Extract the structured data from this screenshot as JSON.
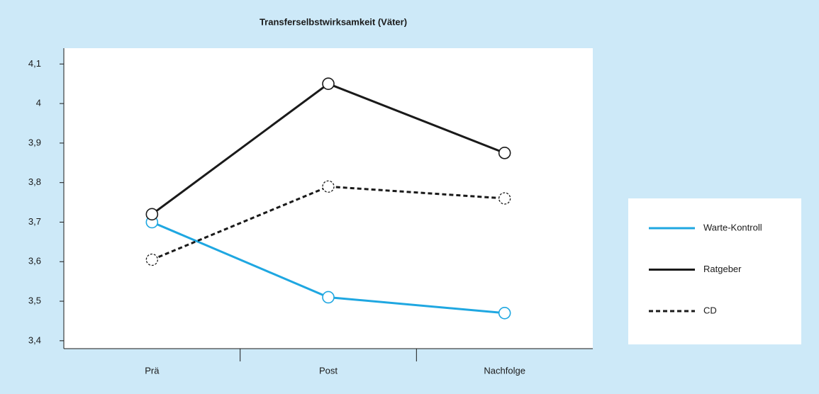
{
  "chart_data": {
    "type": "line",
    "title": "Transferselbstwirksamkeit (Väter)",
    "categories": [
      "Prä",
      "Post",
      "Nachfolge"
    ],
    "series": [
      {
        "name": "Warte-Kontroll",
        "color": "#1fa7e1",
        "dashed": false,
        "values": [
          3.7,
          3.51,
          3.47
        ]
      },
      {
        "name": "Ratgeber",
        "color": "#1a1a1a",
        "dashed": false,
        "values": [
          3.72,
          4.05,
          3.875
        ]
      },
      {
        "name": "CD",
        "color": "#1a1a1a",
        "dashed": true,
        "values": [
          3.605,
          3.79,
          3.76
        ]
      }
    ],
    "ylim": [
      3.38,
      4.14
    ],
    "yticks": [
      {
        "value": 3.4,
        "label": "3,4"
      },
      {
        "value": 3.5,
        "label": "3,5"
      },
      {
        "value": 3.6,
        "label": "3,6"
      },
      {
        "value": 3.7,
        "label": "3,7"
      },
      {
        "value": 3.8,
        "label": "3,8"
      },
      {
        "value": 3.9,
        "label": "3,9"
      },
      4,
      {
        "value": 4.1,
        "label": "4,1"
      }
    ],
    "legend": "right"
  }
}
